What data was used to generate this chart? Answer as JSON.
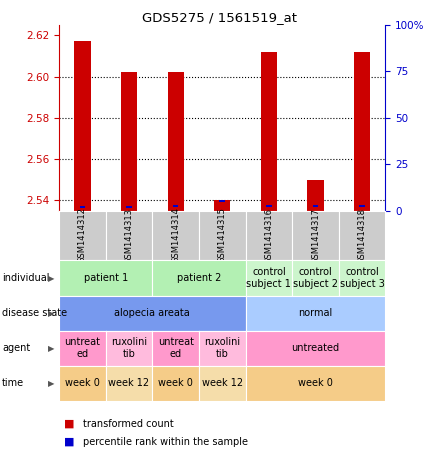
{
  "title": "GDS5275 / 1561519_at",
  "samples": [
    "GSM1414312",
    "GSM1414313",
    "GSM1414314",
    "GSM1414315",
    "GSM1414316",
    "GSM1414317",
    "GSM1414318"
  ],
  "red_values": [
    2.617,
    2.602,
    2.602,
    2.54,
    2.612,
    2.55,
    2.612
  ],
  "blue_values": [
    1.5,
    1.5,
    2.0,
    4.5,
    2.0,
    2.0,
    2.0
  ],
  "ylim_left": [
    2.535,
    2.625
  ],
  "ylim_right": [
    0,
    100
  ],
  "yticks_left": [
    2.54,
    2.56,
    2.58,
    2.6,
    2.62
  ],
  "yticks_right": [
    0,
    25,
    50,
    75,
    100
  ],
  "ytick_labels_right": [
    "0",
    "25",
    "50",
    "75",
    "100%"
  ],
  "dotted_lines": [
    2.54,
    2.56,
    2.58,
    2.6
  ],
  "individual_groups": [
    {
      "label": "patient 1",
      "span": [
        0,
        2
      ],
      "color": "#b3f0b3"
    },
    {
      "label": "patient 2",
      "span": [
        2,
        4
      ],
      "color": "#b3f0b3"
    },
    {
      "label": "control\nsubject 1",
      "span": [
        4,
        5
      ],
      "color": "#ccf5cc"
    },
    {
      "label": "control\nsubject 2",
      "span": [
        5,
        6
      ],
      "color": "#ccf5cc"
    },
    {
      "label": "control\nsubject 3",
      "span": [
        6,
        7
      ],
      "color": "#ccf5cc"
    }
  ],
  "disease_groups": [
    {
      "label": "alopecia areata",
      "span": [
        0,
        4
      ],
      "color": "#7799ee"
    },
    {
      "label": "normal",
      "span": [
        4,
        7
      ],
      "color": "#aaccff"
    }
  ],
  "agent_groups": [
    {
      "label": "untreat\ned",
      "span": [
        0,
        1
      ],
      "color": "#ff99cc"
    },
    {
      "label": "ruxolini\ntib",
      "span": [
        1,
        2
      ],
      "color": "#ffbbdd"
    },
    {
      "label": "untreat\ned",
      "span": [
        2,
        3
      ],
      "color": "#ff99cc"
    },
    {
      "label": "ruxolini\ntib",
      "span": [
        3,
        4
      ],
      "color": "#ffbbdd"
    },
    {
      "label": "untreated",
      "span": [
        4,
        7
      ],
      "color": "#ff99cc"
    }
  ],
  "time_groups": [
    {
      "label": "week 0",
      "span": [
        0,
        1
      ],
      "color": "#f5cc88"
    },
    {
      "label": "week 12",
      "span": [
        1,
        2
      ],
      "color": "#f5ddaa"
    },
    {
      "label": "week 0",
      "span": [
        2,
        3
      ],
      "color": "#f5cc88"
    },
    {
      "label": "week 12",
      "span": [
        3,
        4
      ],
      "color": "#f5ddaa"
    },
    {
      "label": "week 0",
      "span": [
        4,
        7
      ],
      "color": "#f5cc88"
    }
  ],
  "row_labels": [
    "individual",
    "disease state",
    "agent",
    "time"
  ],
  "legend": [
    {
      "color": "#cc0000",
      "label": "transformed count"
    },
    {
      "color": "#0000cc",
      "label": "percentile rank within the sample"
    }
  ],
  "bar_color": "#cc0000",
  "blue_color": "#0000cc",
  "left_tick_color": "#cc0000",
  "right_tick_color": "#0000cc",
  "sample_box_color": "#cccccc",
  "bar_width": 0.35
}
